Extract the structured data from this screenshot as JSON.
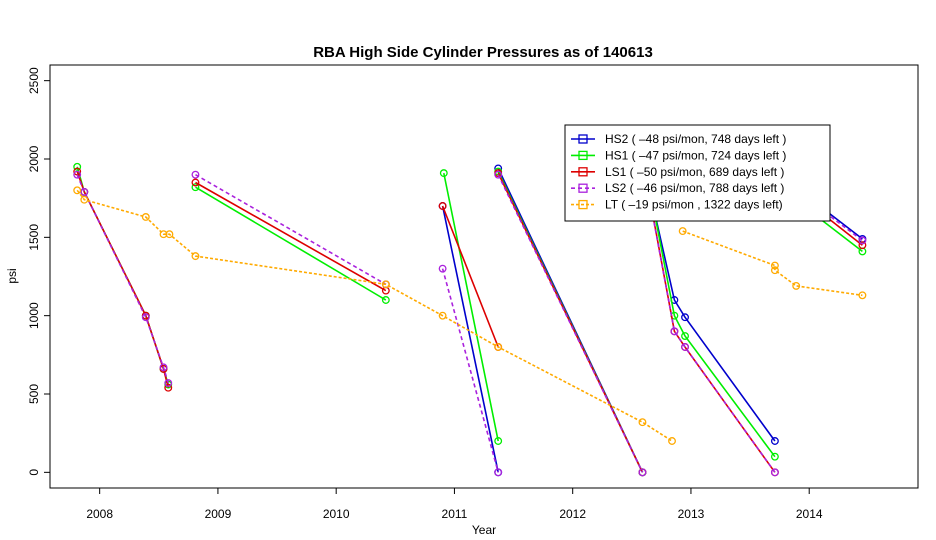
{
  "chart_data": {
    "type": "line",
    "title": "RBA High Side Cylinder Pressures as of  140613",
    "xlabel": "Year",
    "ylabel": "psi",
    "xlim": [
      2007.58,
      2014.92
    ],
    "ylim": [
      -100,
      2600
    ],
    "x_ticks": [
      2008,
      2009,
      2010,
      2011,
      2012,
      2013,
      2014
    ],
    "y_ticks": [
      0,
      500,
      1000,
      1500,
      2000,
      2500
    ],
    "legend_position": "top-right",
    "grid": false,
    "series": [
      {
        "name": "HS2   ( –48 psi/mon, 748 days left )",
        "color": "#0000cc",
        "dash": "",
        "segments": [
          [
            [
              2010.9,
              1700
            ],
            [
              2011.37,
              0
            ]
          ],
          [
            [
              2011.37,
              1940
            ],
            [
              2012.59,
              0
            ]
          ],
          [
            [
              2012.59,
              2000
            ],
            [
              2012.86,
              1100
            ],
            [
              2012.95,
              990
            ],
            [
              2013.71,
              200
            ]
          ],
          [
            [
              2013.71,
              1920
            ],
            [
              2014.45,
              1490
            ]
          ]
        ]
      },
      {
        "name": "HS1   ( –47 psi/mon, 724 days left )",
        "color": "#00ee00",
        "dash": "",
        "segments": [
          [
            [
              2007.81,
              1950
            ],
            [
              2007.87,
              1790
            ],
            [
              2008.39,
              1000
            ],
            [
              2008.54,
              660
            ],
            [
              2008.58,
              560
            ]
          ],
          [
            [
              2008.81,
              1820
            ],
            [
              2010.42,
              1100
            ]
          ],
          [
            [
              2010.91,
              1910
            ],
            [
              2011.37,
              200
            ]
          ],
          [
            [
              2011.37,
              1920
            ],
            [
              2012.59,
              0
            ]
          ],
          [
            [
              2012.59,
              2050
            ],
            [
              2012.86,
              1000
            ],
            [
              2012.95,
              870
            ],
            [
              2013.71,
              100
            ]
          ],
          [
            [
              2013.71,
              1840
            ],
            [
              2014.45,
              1410
            ]
          ]
        ]
      },
      {
        "name": "LS1   ( –50 psi/mon, 689 days left )",
        "color": "#dd0000",
        "dash": "",
        "segments": [
          [
            [
              2007.81,
              1920
            ],
            [
              2007.87,
              1790
            ],
            [
              2008.39,
              1000
            ],
            [
              2008.54,
              660
            ],
            [
              2008.58,
              540
            ]
          ],
          [
            [
              2008.81,
              1850
            ],
            [
              2010.42,
              1160
            ]
          ],
          [
            [
              2010.9,
              1700
            ],
            [
              2011.37,
              800
            ]
          ],
          [
            [
              2011.37,
              1910
            ],
            [
              2012.59,
              0
            ]
          ],
          [
            [
              2012.59,
              2000
            ],
            [
              2012.86,
              900
            ],
            [
              2012.95,
              800
            ],
            [
              2013.71,
              0
            ]
          ],
          [
            [
              2013.71,
              1890
            ],
            [
              2014.45,
              1450
            ]
          ]
        ]
      },
      {
        "name": "LS2   ( –46 psi/mon, 788 days left )",
        "color": "#aa22dd",
        "dash": "4,3",
        "segments": [
          [
            [
              2007.81,
              1900
            ],
            [
              2007.87,
              1790
            ],
            [
              2008.39,
              990
            ],
            [
              2008.54,
              670
            ],
            [
              2008.58,
              570
            ]
          ],
          [
            [
              2008.81,
              1900
            ],
            [
              2010.42,
              1200
            ]
          ],
          [
            [
              2010.9,
              1300
            ],
            [
              2011.37,
              0
            ]
          ],
          [
            [
              2011.37,
              1900
            ],
            [
              2012.59,
              0
            ]
          ],
          [
            [
              2012.59,
              1990
            ],
            [
              2012.86,
              900
            ],
            [
              2012.95,
              800
            ],
            [
              2013.71,
              0
            ]
          ],
          [
            [
              2013.71,
              1900
            ],
            [
              2014.45,
              1480
            ]
          ]
        ]
      },
      {
        "name": "LT   ( –19 psi/mon , 1322 days left)",
        "color": "#ffaa00",
        "dash": "3,2",
        "segments": [
          [
            [
              2007.81,
              1800
            ],
            [
              2007.87,
              1740
            ],
            [
              2008.39,
              1630
            ],
            [
              2008.54,
              1520
            ],
            [
              2008.59,
              1520
            ],
            [
              2008.81,
              1380
            ],
            [
              2010.42,
              1200
            ],
            [
              2010.9,
              1000
            ],
            [
              2011.37,
              800
            ],
            [
              2012.59,
              320
            ],
            [
              2012.84,
              200
            ]
          ],
          [
            [
              2012.93,
              1540
            ],
            [
              2013.71,
              1320
            ],
            [
              2013.71,
              1290
            ],
            [
              2013.89,
              1190
            ],
            [
              2014.45,
              1130
            ]
          ]
        ]
      }
    ]
  }
}
